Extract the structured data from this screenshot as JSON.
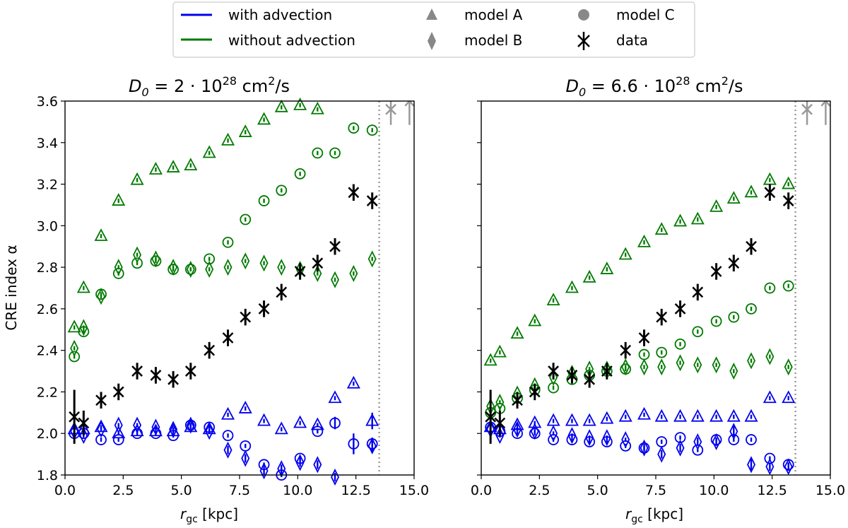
{
  "colors": {
    "with": "#0000ee",
    "without": "#007a00",
    "data": "#000000",
    "grey": "#999999",
    "legend_grey": "#888888"
  },
  "legend": {
    "with_advection": "with advection",
    "without_advection": "without advection",
    "model_a": "model A",
    "model_b": "model B",
    "model_c": "model C",
    "data": "data"
  },
  "chart_data": [
    {
      "type": "scatter",
      "title_prefix": "D",
      "title_sub": "0",
      "title_eq": " = 2 · 10",
      "title_exp": "28",
      "title_unit_a": " cm",
      "title_unit_exp": "2",
      "title_unit_b": "/s",
      "ylabel": "CRE index α",
      "xlabel_main": "r",
      "xlabel_sub": "gc",
      "xlabel_unit": " [kpc]",
      "xlim": [
        0,
        15
      ],
      "ylim": [
        1.8,
        3.6
      ],
      "xticks": [
        "0.0",
        "2.5",
        "5.0",
        "7.5",
        "10.0",
        "12.5",
        "15.0"
      ],
      "yticks": [
        "1.8",
        "2.0",
        "2.2",
        "2.4",
        "2.6",
        "2.8",
        "3.0",
        "3.2",
        "3.4",
        "3.6"
      ],
      "r_limit": 13.5,
      "series": [
        {
          "name": "model A without advection",
          "marker": "triangle",
          "color": "without",
          "x": [
            0.4,
            0.8,
            1.55,
            2.3,
            3.1,
            3.9,
            4.65,
            5.4,
            6.2,
            7.0,
            7.75,
            8.55,
            9.3,
            10.1,
            10.85
          ],
          "y": [
            2.51,
            2.7,
            2.95,
            3.12,
            3.22,
            3.27,
            3.28,
            3.29,
            3.35,
            3.41,
            3.45,
            3.51,
            3.57,
            3.58,
            3.56
          ],
          "err": [
            0.01,
            0.01,
            0.01,
            0.01,
            0.01,
            0.01,
            0.01,
            0.01,
            0.01,
            0.01,
            0.01,
            0.01,
            0.01,
            0.01,
            0.01
          ]
        },
        {
          "name": "model B without advection",
          "marker": "diamond",
          "color": "without",
          "x": [
            0.4,
            0.8,
            1.55,
            2.3,
            3.1,
            3.9,
            4.65,
            5.4,
            6.2,
            7.0,
            7.75,
            8.55,
            9.3,
            10.1,
            10.85,
            11.6,
            12.4,
            13.2
          ],
          "y": [
            2.41,
            2.51,
            2.66,
            2.8,
            2.86,
            2.84,
            2.8,
            2.79,
            2.79,
            2.8,
            2.83,
            2.82,
            2.8,
            2.79,
            2.77,
            2.74,
            2.77,
            2.84
          ],
          "err": [
            0.01,
            0.01,
            0.01,
            0.01,
            0.01,
            0.01,
            0.01,
            0.01,
            0.01,
            0.01,
            0.01,
            0.01,
            0.01,
            0.01,
            0.01,
            0.01,
            0.01,
            0.01
          ]
        },
        {
          "name": "model C without advection",
          "marker": "circle",
          "color": "without",
          "x": [
            0.4,
            0.8,
            1.55,
            2.3,
            3.1,
            3.9,
            4.65,
            5.4,
            6.2,
            7.0,
            7.75,
            8.55,
            9.3,
            10.1,
            10.85,
            11.6,
            12.4,
            13.2
          ],
          "y": [
            2.37,
            2.49,
            2.67,
            2.77,
            2.82,
            2.83,
            2.79,
            2.79,
            2.84,
            2.92,
            3.03,
            3.12,
            3.17,
            3.25,
            3.35,
            3.35,
            3.47,
            3.46
          ],
          "err": [
            0.01,
            0.01,
            0.01,
            0.01,
            0.01,
            0.01,
            0.01,
            0.01,
            0.01,
            0.01,
            0.01,
            0.01,
            0.01,
            0.01,
            0.01,
            0.01,
            0.01,
            0.01
          ]
        },
        {
          "name": "model A with advection",
          "marker": "triangle",
          "color": "with",
          "x": [
            0.4,
            0.8,
            1.55,
            2.3,
            3.1,
            3.9,
            4.65,
            5.4,
            6.2,
            7.0,
            7.75,
            8.55,
            9.3,
            10.1,
            10.85,
            11.6,
            12.4,
            13.2
          ],
          "y": [
            2.02,
            2.02,
            2.03,
            2.0,
            2.01,
            2.01,
            2.01,
            2.03,
            2.02,
            2.09,
            2.12,
            2.06,
            2.02,
            2.05,
            2.04,
            2.17,
            2.24,
            2.06
          ],
          "err": [
            0.01,
            0.01,
            0.01,
            0.01,
            0.01,
            0.01,
            0.01,
            0.01,
            0.01,
            0.01,
            0.01,
            0.01,
            0.01,
            0.01,
            0.01,
            0.01,
            0.01,
            0.04
          ]
        },
        {
          "name": "model B with advection",
          "marker": "diamond",
          "color": "with",
          "x": [
            0.4,
            0.8,
            1.55,
            2.3,
            3.1,
            3.9,
            4.65,
            5.4,
            6.2,
            7.0,
            7.75,
            8.55,
            9.3,
            10.1,
            10.85,
            11.6,
            12.4,
            13.2
          ],
          "y": [
            2.01,
            1.99,
            2.02,
            2.04,
            2.04,
            2.03,
            2.02,
            2.04,
            2.01,
            1.92,
            1.88,
            1.82,
            1.83,
            1.86,
            1.85,
            1.79,
            1.76,
            1.94
          ],
          "err": [
            0.01,
            0.01,
            0.01,
            0.01,
            0.01,
            0.01,
            0.01,
            0.01,
            0.01,
            0.02,
            0.02,
            0.02,
            0.02,
            0.02,
            0.02,
            0.02,
            0.02,
            0.03
          ]
        },
        {
          "name": "model C with advection",
          "marker": "circle",
          "color": "with",
          "x": [
            0.4,
            0.8,
            1.55,
            2.3,
            3.1,
            3.9,
            4.65,
            5.4,
            6.2,
            7.0,
            7.75,
            8.55,
            9.3,
            10.1,
            10.85,
            11.6,
            12.4,
            13.2
          ],
          "y": [
            2.0,
            2.0,
            1.97,
            1.97,
            2.0,
            2.0,
            1.99,
            2.04,
            2.03,
            1.99,
            1.94,
            1.85,
            1.8,
            1.88,
            2.01,
            2.05,
            1.95,
            1.95
          ],
          "err": [
            0.01,
            0.01,
            0.01,
            0.01,
            0.01,
            0.01,
            0.01,
            0.01,
            0.01,
            0.01,
            0.01,
            0.01,
            0.01,
            0.01,
            0.01,
            0.03,
            0.05,
            0.03
          ]
        },
        {
          "name": "data",
          "marker": "x",
          "color": "data",
          "x": [
            0.4,
            0.8,
            1.55,
            2.3,
            3.1,
            3.9,
            4.65,
            5.4,
            6.2,
            7.0,
            7.75,
            8.55,
            9.3,
            10.1,
            10.85,
            11.6,
            12.4,
            13.2
          ],
          "y": [
            2.08,
            2.05,
            2.16,
            2.2,
            2.3,
            2.28,
            2.26,
            2.3,
            2.4,
            2.46,
            2.56,
            2.6,
            2.68,
            2.78,
            2.82,
            2.9,
            3.16,
            3.12
          ],
          "err": [
            0.13,
            0.06,
            0.04,
            0.04,
            0.04,
            0.04,
            0.04,
            0.04,
            0.04,
            0.04,
            0.04,
            0.04,
            0.04,
            0.04,
            0.04,
            0.04,
            0.04,
            0.04
          ]
        }
      ],
      "limit_markers": [
        {
          "x": 14.0,
          "y": 3.56,
          "shape": "x"
        },
        {
          "x": 14.8,
          "y": 3.56,
          "shape": "arrow"
        }
      ]
    },
    {
      "type": "scatter",
      "title_prefix": "D",
      "title_sub": "0",
      "title_eq": " = 6.6 · 10",
      "title_exp": "28",
      "title_unit_a": " cm",
      "title_unit_exp": "2",
      "title_unit_b": "/s",
      "ylabel": "",
      "xlabel_main": "r",
      "xlabel_sub": "gc",
      "xlabel_unit": " [kpc]",
      "xlim": [
        0,
        15
      ],
      "ylim": [
        1.8,
        3.6
      ],
      "xticks": [
        "0.0",
        "2.5",
        "5.0",
        "7.5",
        "10.0",
        "12.5",
        "15.0"
      ],
      "yticks": [],
      "r_limit": 13.5,
      "series": [
        {
          "name": "model A without advection",
          "marker": "triangle",
          "color": "without",
          "x": [
            0.4,
            0.8,
            1.55,
            2.3,
            3.1,
            3.9,
            4.65,
            5.4,
            6.2,
            7.0,
            7.75,
            8.55,
            9.3,
            10.1,
            10.85,
            11.6,
            12.4,
            13.2
          ],
          "y": [
            2.35,
            2.39,
            2.48,
            2.54,
            2.64,
            2.7,
            2.75,
            2.79,
            2.86,
            2.92,
            2.98,
            3.02,
            3.03,
            3.09,
            3.13,
            3.16,
            3.22,
            3.2
          ],
          "err": [
            0.01,
            0.01,
            0.01,
            0.01,
            0.01,
            0.01,
            0.01,
            0.01,
            0.01,
            0.01,
            0.01,
            0.01,
            0.01,
            0.01,
            0.01,
            0.01,
            0.01,
            0.01
          ]
        },
        {
          "name": "model B without advection",
          "marker": "diamond",
          "color": "without",
          "x": [
            0.4,
            0.8,
            1.55,
            2.3,
            3.1,
            3.9,
            4.65,
            5.4,
            6.2,
            7.0,
            7.75,
            8.55,
            9.3,
            10.1,
            10.85,
            11.6,
            12.4,
            13.2
          ],
          "y": [
            2.13,
            2.15,
            2.19,
            2.23,
            2.27,
            2.29,
            2.31,
            2.31,
            2.32,
            2.32,
            2.32,
            2.34,
            2.33,
            2.33,
            2.3,
            2.35,
            2.37,
            2.32
          ],
          "err": [
            0.01,
            0.01,
            0.01,
            0.01,
            0.01,
            0.01,
            0.01,
            0.01,
            0.01,
            0.01,
            0.01,
            0.01,
            0.01,
            0.01,
            0.01,
            0.01,
            0.01,
            0.01
          ]
        },
        {
          "name": "model C without advection",
          "marker": "circle",
          "color": "without",
          "x": [
            0.4,
            0.8,
            1.55,
            2.3,
            3.1,
            3.9,
            4.65,
            5.4,
            6.2,
            7.0,
            7.75,
            8.55,
            9.3,
            10.1,
            10.85,
            11.6,
            12.4,
            13.2
          ],
          "y": [
            2.1,
            2.12,
            2.17,
            2.21,
            2.22,
            2.26,
            2.28,
            2.3,
            2.31,
            2.38,
            2.39,
            2.43,
            2.49,
            2.54,
            2.56,
            2.6,
            2.7,
            2.71
          ],
          "err": [
            0.01,
            0.01,
            0.01,
            0.01,
            0.01,
            0.01,
            0.01,
            0.01,
            0.01,
            0.01,
            0.01,
            0.01,
            0.01,
            0.01,
            0.01,
            0.01,
            0.01,
            0.01
          ]
        },
        {
          "name": "model A with advection",
          "marker": "triangle",
          "color": "with",
          "x": [
            0.4,
            0.8,
            1.55,
            2.3,
            3.1,
            3.9,
            4.65,
            5.4,
            6.2,
            7.0,
            7.75,
            8.55,
            9.3,
            10.1,
            10.85,
            11.6,
            12.4,
            13.2
          ],
          "y": [
            2.03,
            2.02,
            2.04,
            2.05,
            2.06,
            2.06,
            2.06,
            2.07,
            2.08,
            2.09,
            2.08,
            2.08,
            2.08,
            2.08,
            2.08,
            2.08,
            2.17,
            2.17
          ],
          "err": [
            0.01,
            0.01,
            0.01,
            0.01,
            0.01,
            0.01,
            0.01,
            0.01,
            0.01,
            0.01,
            0.01,
            0.01,
            0.01,
            0.01,
            0.01,
            0.01,
            0.01,
            0.01
          ]
        },
        {
          "name": "model B with advection",
          "marker": "diamond",
          "color": "with",
          "x": [
            0.4,
            0.8,
            1.55,
            2.3,
            3.1,
            3.9,
            4.65,
            5.4,
            6.2,
            7.0,
            7.75,
            8.55,
            9.3,
            10.1,
            10.85,
            11.6,
            12.4,
            13.2
          ],
          "y": [
            2.02,
            1.99,
            2.02,
            2.01,
            2.0,
            1.99,
            1.98,
            1.98,
            1.97,
            1.93,
            1.9,
            1.93,
            1.96,
            1.96,
            2.01,
            1.85,
            1.84,
            1.84
          ],
          "err": [
            0.01,
            0.01,
            0.01,
            0.01,
            0.01,
            0.01,
            0.01,
            0.01,
            0.01,
            0.02,
            0.02,
            0.02,
            0.02,
            0.02,
            0.03,
            0.03,
            0.02,
            0.02
          ]
        },
        {
          "name": "model C with advection",
          "marker": "circle",
          "color": "with",
          "x": [
            0.4,
            0.8,
            1.55,
            2.3,
            3.1,
            3.9,
            4.65,
            5.4,
            6.2,
            7.0,
            7.75,
            8.55,
            9.3,
            10.1,
            10.85,
            11.6,
            12.4,
            13.2
          ],
          "y": [
            2.03,
            2.01,
            2.0,
            2.0,
            1.97,
            1.97,
            1.96,
            1.96,
            1.94,
            1.93,
            1.96,
            1.98,
            1.92,
            1.97,
            1.97,
            1.97,
            1.88,
            1.85
          ],
          "err": [
            0.01,
            0.01,
            0.01,
            0.01,
            0.01,
            0.01,
            0.01,
            0.01,
            0.01,
            0.01,
            0.01,
            0.01,
            0.01,
            0.01,
            0.01,
            0.01,
            0.01,
            0.01
          ]
        },
        {
          "name": "data",
          "marker": "x",
          "color": "data",
          "x": [
            0.4,
            0.8,
            1.55,
            2.3,
            3.1,
            3.9,
            4.65,
            5.4,
            6.2,
            7.0,
            7.75,
            8.55,
            9.3,
            10.1,
            10.85,
            11.6,
            12.4,
            13.2
          ],
          "y": [
            2.08,
            2.05,
            2.16,
            2.2,
            2.3,
            2.28,
            2.26,
            2.3,
            2.4,
            2.46,
            2.56,
            2.6,
            2.68,
            2.78,
            2.82,
            2.9,
            3.16,
            3.12
          ],
          "err": [
            0.13,
            0.06,
            0.04,
            0.04,
            0.04,
            0.04,
            0.04,
            0.04,
            0.04,
            0.04,
            0.04,
            0.04,
            0.04,
            0.04,
            0.04,
            0.04,
            0.04,
            0.04
          ]
        }
      ],
      "limit_markers": [
        {
          "x": 14.0,
          "y": 3.56,
          "shape": "x"
        },
        {
          "x": 14.8,
          "y": 3.56,
          "shape": "arrow"
        }
      ]
    }
  ]
}
